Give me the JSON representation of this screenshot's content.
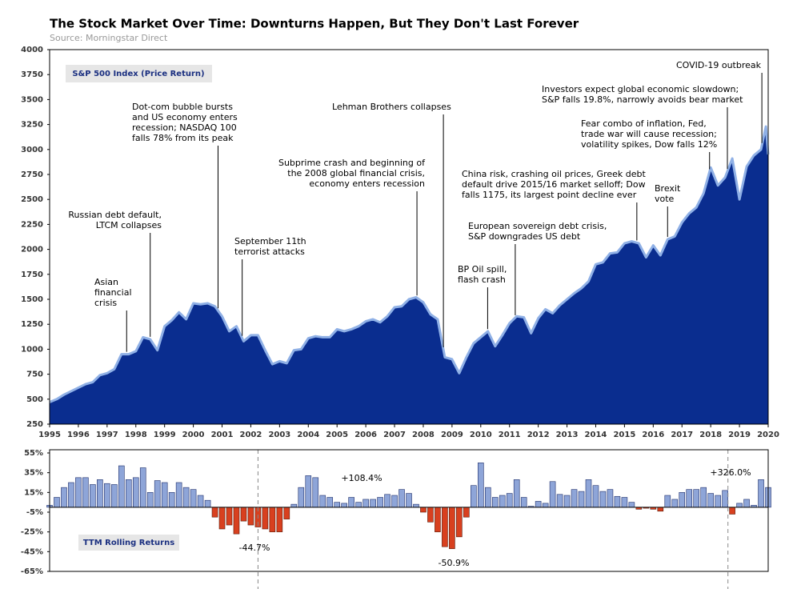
{
  "chart_data": [
    {
      "type": "area",
      "title": "The Stock Market Over Time: Downturns Happen, But They Don't Last Forever",
      "subtitle": "Source: Morningstar Direct",
      "series": [
        {
          "name": "S&P 500 Index (Price Return)",
          "color": "#0a2d8f",
          "line_color": "#8fb0e6",
          "x": [
            1995,
            1995.25,
            1995.5,
            1995.75,
            1996,
            1996.25,
            1996.5,
            1996.75,
            1997,
            1997.25,
            1997.5,
            1997.75,
            1998,
            1998.25,
            1998.5,
            1998.75,
            1999,
            1999.25,
            1999.5,
            1999.75,
            2000,
            2000.25,
            2000.5,
            2000.75,
            2001,
            2001.25,
            2001.5,
            2001.75,
            2002,
            2002.25,
            2002.5,
            2002.75,
            2003,
            2003.25,
            2003.5,
            2003.75,
            2004,
            2004.25,
            2004.5,
            2004.75,
            2005,
            2005.25,
            2005.5,
            2005.75,
            2006,
            2006.25,
            2006.5,
            2006.75,
            2007,
            2007.25,
            2007.5,
            2007.75,
            2008,
            2008.25,
            2008.5,
            2008.75,
            2009,
            2009.25,
            2009.5,
            2009.75,
            2010,
            2010.25,
            2010.5,
            2010.75,
            2011,
            2011.25,
            2011.5,
            2011.75,
            2012,
            2012.25,
            2012.5,
            2012.75,
            2013,
            2013.25,
            2013.5,
            2013.75,
            2014,
            2014.25,
            2014.5,
            2014.75,
            2015,
            2015.25,
            2015.5,
            2015.75,
            2016,
            2016.25,
            2016.5,
            2016.75,
            2017,
            2017.25,
            2017.5,
            2017.75,
            2018,
            2018.25,
            2018.5,
            2018.75,
            2019,
            2019.25,
            2019.5,
            2019.75,
            2019.92,
            2020
          ],
          "values": [
            470,
            500,
            545,
            580,
            615,
            650,
            670,
            740,
            760,
            800,
            950,
            950,
            980,
            1120,
            1100,
            990,
            1230,
            1290,
            1370,
            1300,
            1460,
            1450,
            1460,
            1430,
            1330,
            1180,
            1230,
            1080,
            1140,
            1140,
            990,
            850,
            880,
            860,
            990,
            1000,
            1110,
            1130,
            1120,
            1120,
            1200,
            1180,
            1200,
            1230,
            1280,
            1300,
            1270,
            1330,
            1420,
            1430,
            1500,
            1520,
            1470,
            1350,
            1300,
            920,
            900,
            760,
            920,
            1060,
            1120,
            1180,
            1030,
            1140,
            1260,
            1330,
            1320,
            1160,
            1310,
            1400,
            1360,
            1440,
            1500,
            1560,
            1610,
            1680,
            1850,
            1870,
            1960,
            1970,
            2060,
            2080,
            2060,
            1920,
            2040,
            1940,
            2100,
            2130,
            2270,
            2360,
            2420,
            2560,
            2820,
            2640,
            2720,
            2910,
            2500,
            2830,
            2940,
            3000,
            3230,
            2950
          ]
        }
      ],
      "xlim": [
        1995,
        2020
      ],
      "xticks": [
        1995,
        1996,
        1997,
        1998,
        1999,
        2000,
        2001,
        2002,
        2003,
        2004,
        2005,
        2006,
        2007,
        2008,
        2009,
        2010,
        2011,
        2012,
        2013,
        2014,
        2015,
        2016,
        2017,
        2018,
        2019,
        2020
      ],
      "ylim": [
        250,
        4000
      ],
      "yticks": [
        250,
        500,
        750,
        1000,
        1250,
        1500,
        1750,
        2000,
        2250,
        2500,
        2750,
        3000,
        3250,
        3500,
        3750,
        4000
      ],
      "annotations": [
        {
          "x": 1997.68,
          "text": [
            "Asian",
            "financial",
            "crisis"
          ]
        },
        {
          "x": 1998.5,
          "text": [
            "Russian debt default,",
            "LTCM collapses"
          ]
        },
        {
          "x": 2000.86,
          "text": [
            "Dot-com bubble bursts",
            "and US economy enters",
            "recession; NASDAQ 100",
            "falls 78% from its peak"
          ]
        },
        {
          "x": 2001.7,
          "text": [
            "September 11th",
            "terrorist attacks"
          ]
        },
        {
          "x": 2007.78,
          "text": [
            "Subprime crash and beginning of",
            "the 2008 global financial crisis,",
            "economy enters recession"
          ]
        },
        {
          "x": 2008.7,
          "text": [
            "Lehman Brothers collapses"
          ]
        },
        {
          "x": 2010.24,
          "text": [
            "BP Oil spill,",
            "flash crash"
          ]
        },
        {
          "x": 2011.2,
          "text": [
            "European sovereign debt crisis,",
            "S&P downgrades US debt"
          ]
        },
        {
          "x": 2015.43,
          "text": [
            "China risk, crashing oil prices, Greek debt",
            "default drive 2015/16 market selloff; Dow",
            "falls 1175, its largest point decline ever"
          ]
        },
        {
          "x": 2016.5,
          "text": [
            "Brexit",
            "vote"
          ]
        },
        {
          "x": 2017.96,
          "text": [
            "Fear combo of inflation, Fed,",
            "trade war will cause recession;",
            "volatility spikes, Dow falls 12%"
          ]
        },
        {
          "x": 2018.58,
          "text": [
            "Investors expect global economic slowdown;",
            "S&P falls 19.8%, narrowly avoids bear market"
          ]
        },
        {
          "x": 2019.78,
          "text": [
            "COVID-19 outbreak"
          ]
        }
      ]
    },
    {
      "type": "bar",
      "series": [
        {
          "name": "TTM Rolling Returns",
          "color": "#8ea5d8",
          "negative_color": "#d8401f",
          "x": [
            1995,
            1995.25,
            1995.5,
            1995.75,
            1996,
            1996.25,
            1996.5,
            1996.75,
            1997,
            1997.25,
            1997.5,
            1997.75,
            1998,
            1998.25,
            1998.5,
            1998.75,
            1999,
            1999.25,
            1999.5,
            1999.75,
            2000,
            2000.25,
            2000.5,
            2000.75,
            2001,
            2001.25,
            2001.5,
            2001.75,
            2002,
            2002.25,
            2002.5,
            2002.75,
            2003,
            2003.25,
            2003.5,
            2003.75,
            2004,
            2004.25,
            2004.5,
            2004.75,
            2005,
            2005.25,
            2005.5,
            2005.75,
            2006,
            2006.25,
            2006.5,
            2006.75,
            2007,
            2007.25,
            2007.5,
            2007.75,
            2008,
            2008.25,
            2008.5,
            2008.75,
            2009,
            2009.25,
            2009.5,
            2009.75,
            2010,
            2010.25,
            2010.5,
            2010.75,
            2011,
            2011.25,
            2011.5,
            2011.75,
            2012,
            2012.25,
            2012.5,
            2012.75,
            2013,
            2013.25,
            2013.5,
            2013.75,
            2014,
            2014.25,
            2014.5,
            2014.75,
            2015,
            2015.25,
            2015.5,
            2015.75,
            2016,
            2016.25,
            2016.5,
            2016.75,
            2017,
            2017.25,
            2017.5,
            2017.75,
            2018,
            2018.25,
            2018.5,
            2018.75,
            2019,
            2019.25,
            2019.5,
            2019.75,
            2020
          ],
          "values": [
            2,
            10,
            20,
            25,
            30,
            30,
            23,
            28,
            24,
            23,
            42,
            28,
            30,
            40,
            15,
            27,
            25,
            15,
            25,
            20,
            18,
            12,
            7,
            -10,
            -22,
            -18,
            -27,
            -14,
            -18,
            -20,
            -22,
            -25,
            -25,
            -12,
            3,
            20,
            32,
            30,
            12,
            10,
            5,
            4,
            10,
            5,
            8,
            8,
            10,
            13,
            12,
            18,
            14,
            3,
            -5,
            -15,
            -25,
            -40,
            -42,
            -30,
            -10,
            22,
            45,
            20,
            10,
            12,
            14,
            28,
            10,
            1,
            6,
            4,
            26,
            13,
            12,
            18,
            16,
            28,
            22,
            16,
            18,
            11,
            10,
            5,
            -2,
            -1,
            -2,
            -4,
            12,
            8,
            15,
            18,
            18,
            20,
            14,
            12,
            17,
            -7,
            4,
            8,
            2,
            28,
            20
          ]
        }
      ],
      "xlim": [
        1995,
        2020
      ],
      "ylim": [
        -65,
        55
      ],
      "yticks": [
        {
          "value": 55,
          "label": "55%"
        },
        {
          "value": 35,
          "label": "35%"
        },
        {
          "value": 15,
          "label": "15%"
        },
        {
          "value": -5,
          "label": "-5%"
        },
        {
          "value": -25,
          "label": "-25%"
        },
        {
          "value": -45,
          "label": "-45%"
        },
        {
          "value": -65,
          "label": "-65%"
        }
      ],
      "period_markers": [
        2002.25,
        2018.6
      ],
      "annotations": [
        {
          "text": "+108.4%"
        },
        {
          "text": "-44.7%"
        },
        {
          "text": "-50.9%"
        },
        {
          "text": "+326.0%"
        }
      ]
    }
  ]
}
